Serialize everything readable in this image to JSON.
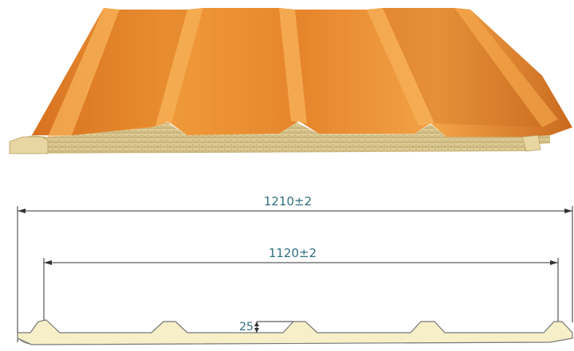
{
  "dimensions": {
    "overall_width": "1210±2",
    "effective_width": "1120±2",
    "rib_height": "25"
  },
  "colors": {
    "steel_face": "#e8862a",
    "steel_highlight": "#f4a548",
    "steel_shadow": "#b9611a",
    "core": "#d9c58f",
    "profile_fill": "#f6efc8",
    "dimension_text": "#2f6f7d"
  }
}
